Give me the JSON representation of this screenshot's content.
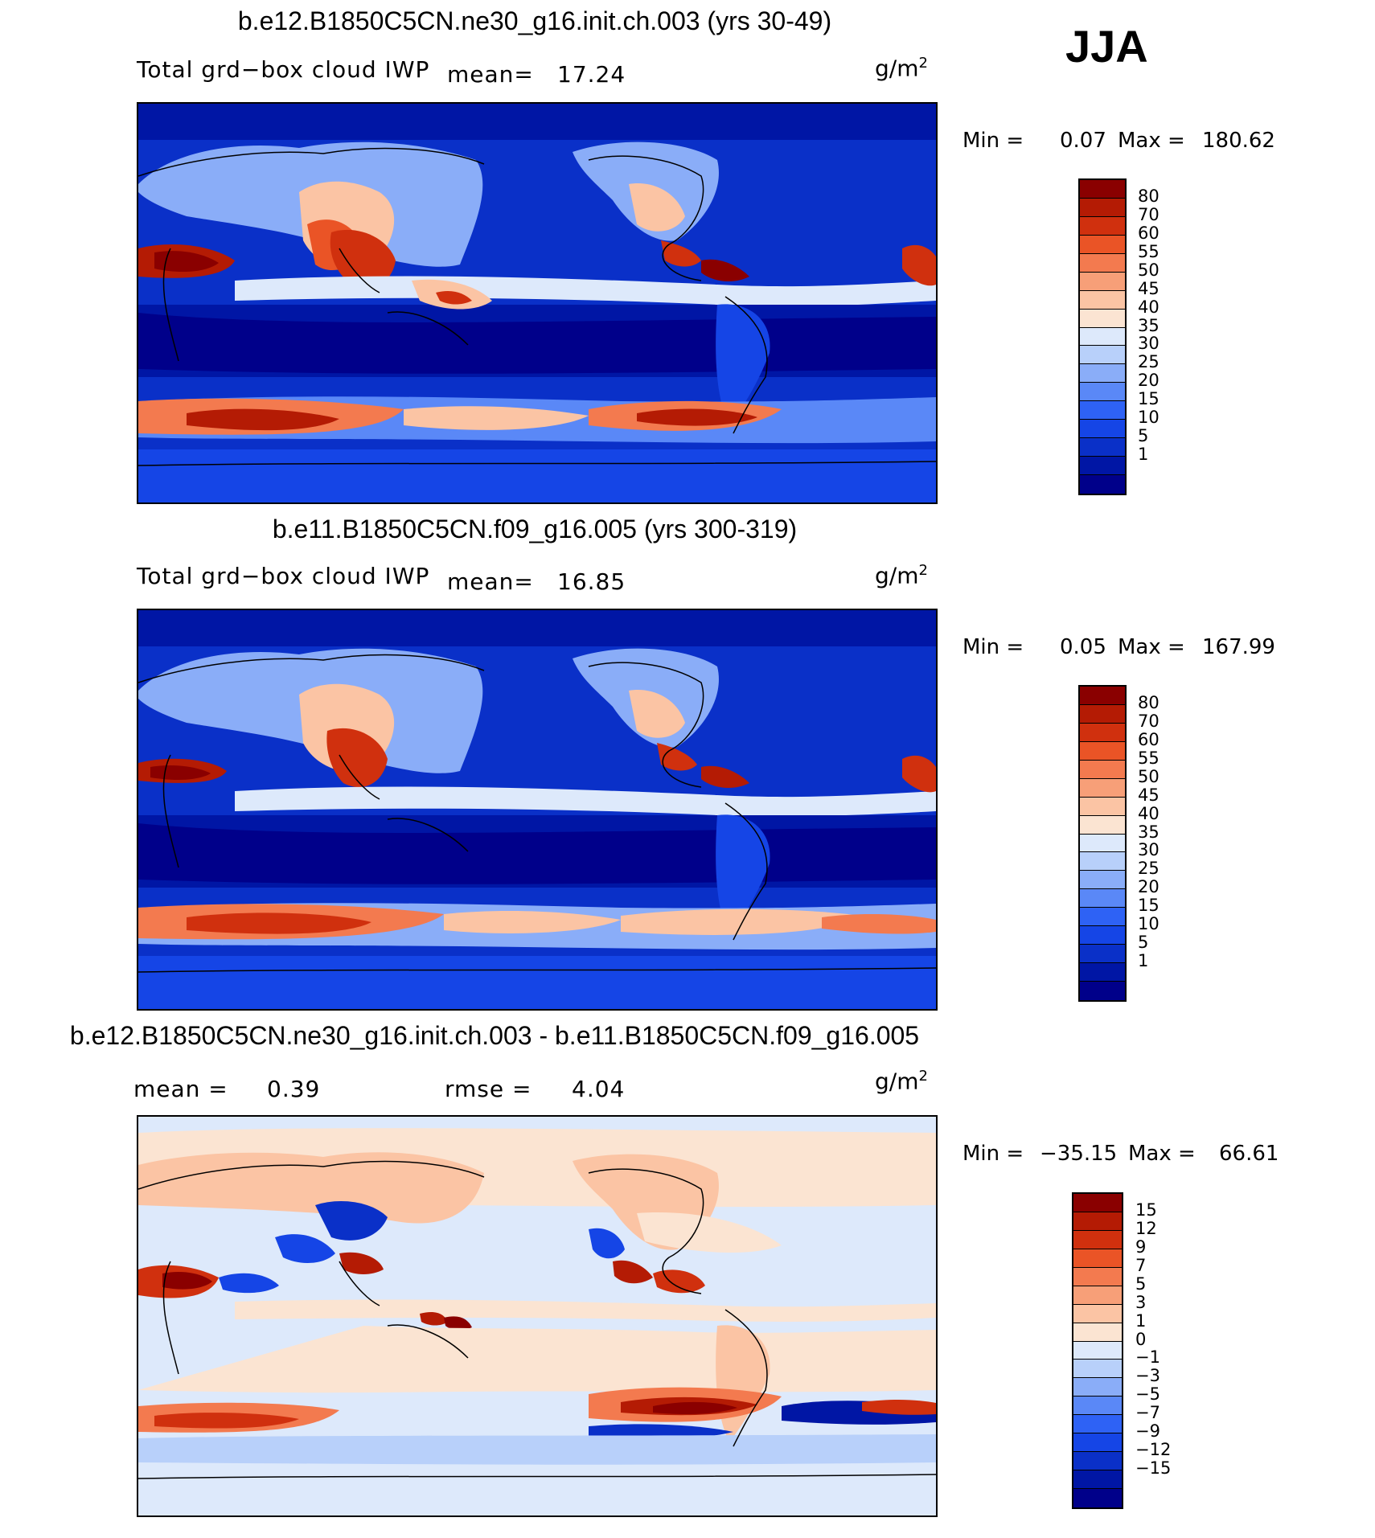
{
  "season": "JJA",
  "units_main": "g/m",
  "units_sup": "2",
  "panels": [
    {
      "title": "b.e12.B1850C5CN.ne30_g16.init.ch.003 (yrs 30-49)",
      "variable": "Total grd−box cloud IWP",
      "stat1_label": "mean=",
      "stat1_value": "17.24",
      "min_label": "Min =",
      "min_value": "0.07",
      "max_label": "Max =",
      "max_value": "180.62",
      "levels": [
        "80",
        "70",
        "60",
        "55",
        "50",
        "45",
        "40",
        "35",
        "30",
        "25",
        "20",
        "15",
        "10",
        "5",
        "1"
      ]
    },
    {
      "title": "b.e11.B1850C5CN.f09_g16.005 (yrs 300-319)",
      "variable": "Total grd−box cloud IWP",
      "stat1_label": "mean=",
      "stat1_value": "16.85",
      "min_label": "Min =",
      "min_value": "0.05",
      "max_label": "Max =",
      "max_value": "167.99",
      "levels": [
        "80",
        "70",
        "60",
        "55",
        "50",
        "45",
        "40",
        "35",
        "30",
        "25",
        "20",
        "15",
        "10",
        "5",
        "1"
      ]
    },
    {
      "title": "b.e12.B1850C5CN.ne30_g16.init.ch.003 - b.e11.B1850C5CN.f09_g16.005",
      "stat1_label": "mean =",
      "stat1_value": "0.39",
      "stat2_label": "rmse =",
      "stat2_value": "4.04",
      "min_label": "Min =",
      "min_value": "−35.15",
      "max_label": "Max =",
      "max_value": "66.61",
      "levels": [
        "15",
        "12",
        "9",
        "7",
        "5",
        "3",
        "1",
        "0",
        "−1",
        "−3",
        "−5",
        "−7",
        "−9",
        "−12",
        "−15"
      ]
    }
  ],
  "chart_data": [
    {
      "type": "heatmap",
      "title": "b.e12.B1850C5CN.ne30_g16.init.ch.003 (yrs 30-49)",
      "variable": "Total grd-box cloud IWP",
      "units": "g/m2",
      "mean": 17.24,
      "min": 0.07,
      "max": 180.62,
      "colorbar_levels": [
        1,
        5,
        10,
        15,
        20,
        25,
        30,
        35,
        40,
        45,
        50,
        55,
        60,
        70,
        80
      ],
      "colors": [
        "#00008a",
        "#0016a5",
        "#0a30c8",
        "#1545e6",
        "#2e62f5",
        "#5a88f7",
        "#8aadf8",
        "#b8d0fa",
        "#dde9fb",
        "#fbe4d2",
        "#fbc4a4",
        "#f79f78",
        "#f37a4f",
        "#ea5426",
        "#d0300e",
        "#b41b04",
        "#8a0000"
      ]
    },
    {
      "type": "heatmap",
      "title": "b.e11.B1850C5CN.f09_g16.005 (yrs 300-319)",
      "variable": "Total grd-box cloud IWP",
      "units": "g/m2",
      "mean": 16.85,
      "min": 0.05,
      "max": 167.99,
      "colorbar_levels": [
        1,
        5,
        10,
        15,
        20,
        25,
        30,
        35,
        40,
        45,
        50,
        55,
        60,
        70,
        80
      ],
      "colors": [
        "#00008a",
        "#0016a5",
        "#0a30c8",
        "#1545e6",
        "#2e62f5",
        "#5a88f7",
        "#8aadf8",
        "#b8d0fa",
        "#dde9fb",
        "#fbe4d2",
        "#fbc4a4",
        "#f79f78",
        "#f37a4f",
        "#ea5426",
        "#d0300e",
        "#b41b04",
        "#8a0000"
      ]
    },
    {
      "type": "heatmap",
      "title": "b.e12.B1850C5CN.ne30_g16.init.ch.003 - b.e11.B1850C5CN.f09_g16.005",
      "units": "g/m2",
      "mean": 0.39,
      "rmse": 4.04,
      "min": -35.15,
      "max": 66.61,
      "colorbar_levels": [
        -15,
        -12,
        -9,
        -7,
        -5,
        -3,
        -1,
        0,
        1,
        3,
        5,
        7,
        9,
        12,
        15
      ],
      "colors": [
        "#00008a",
        "#0016a5",
        "#0a30c8",
        "#1545e6",
        "#2e62f5",
        "#5a88f7",
        "#8aadf8",
        "#b8d0fa",
        "#dde9fb",
        "#fbe4d2",
        "#fbc4a4",
        "#f79f78",
        "#f37a4f",
        "#ea5426",
        "#d0300e",
        "#b41b04",
        "#8a0000"
      ]
    }
  ]
}
